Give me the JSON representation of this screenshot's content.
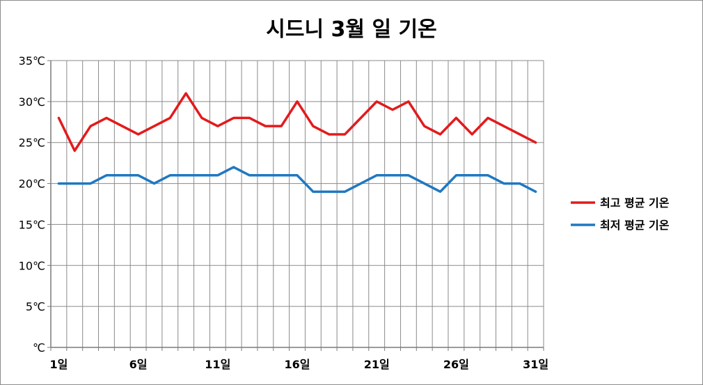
{
  "chart_data": {
    "type": "line",
    "title": "시드니 3월 일 기온",
    "y_unit": "℃",
    "ylim": [
      0,
      35
    ],
    "yticks": [
      0,
      5,
      10,
      15,
      20,
      25,
      30,
      35
    ],
    "ytick_labels": [
      "℃",
      "5℃",
      "10℃",
      "15℃",
      "20℃",
      "25℃",
      "30℃",
      "35℃"
    ],
    "x": [
      1,
      2,
      3,
      4,
      5,
      6,
      7,
      8,
      9,
      10,
      11,
      12,
      13,
      14,
      15,
      16,
      17,
      18,
      19,
      20,
      21,
      22,
      23,
      24,
      25,
      26,
      27,
      28,
      29,
      30,
      31
    ],
    "xtick_positions": [
      1,
      6,
      11,
      16,
      21,
      26,
      31
    ],
    "xtick_labels": [
      "1일",
      "6일",
      "11일",
      "16일",
      "21일",
      "26일",
      "31일"
    ],
    "grid": true,
    "legend_position": "right",
    "series": [
      {
        "name": "최고 평균 기온",
        "color": "#e31a1c",
        "values": [
          28,
          24,
          27,
          28,
          27,
          26,
          27,
          28,
          31,
          28,
          27,
          28,
          28,
          27,
          27,
          30,
          27,
          26,
          26,
          28,
          30,
          29,
          30,
          27,
          26,
          28,
          26,
          28,
          27,
          26,
          25
        ]
      },
      {
        "name": "최저 평균 기온",
        "color": "#1f78c1",
        "values": [
          20,
          20,
          20,
          21,
          21,
          21,
          20,
          21,
          21,
          21,
          21,
          22,
          21,
          21,
          21,
          21,
          19,
          19,
          19,
          20,
          21,
          21,
          21,
          20,
          19,
          21,
          21,
          21,
          20,
          20,
          19
        ]
      }
    ]
  }
}
